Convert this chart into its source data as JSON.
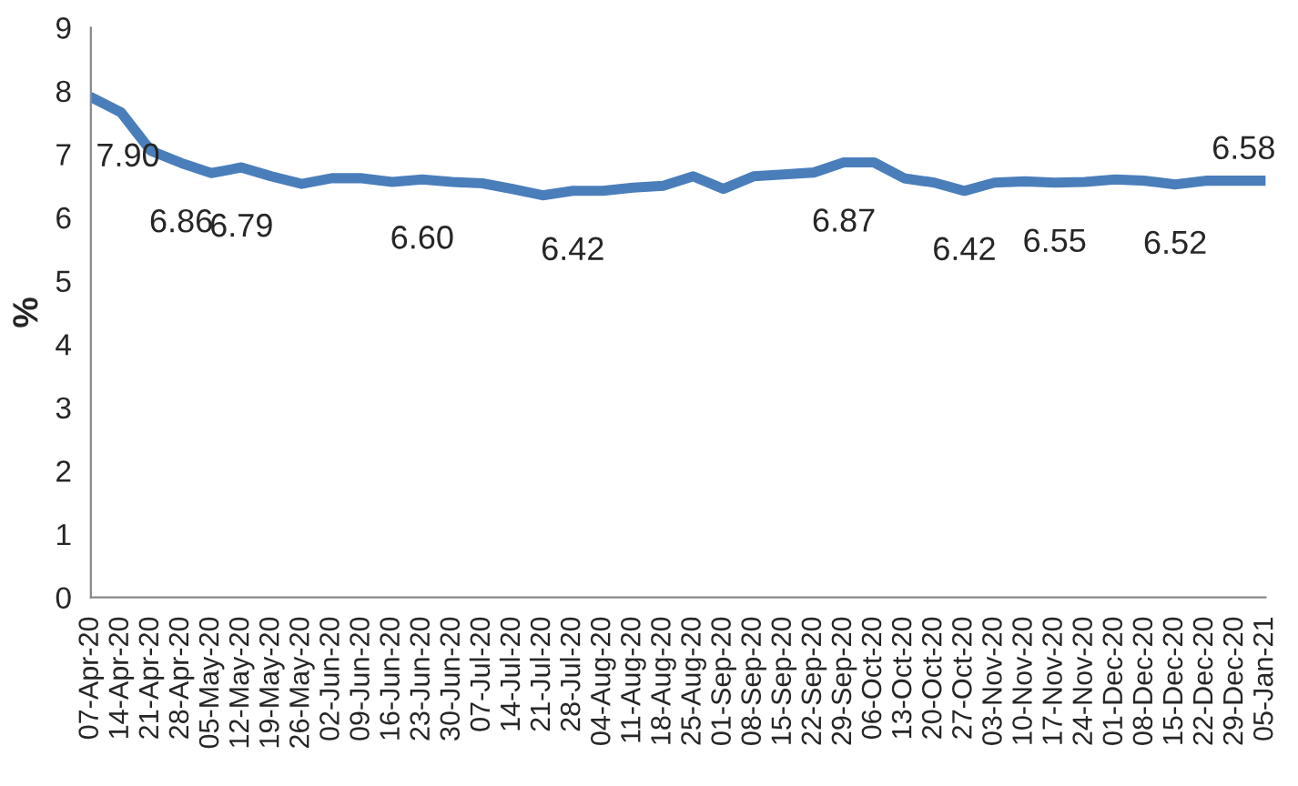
{
  "chart_data": {
    "type": "line",
    "ylabel": "%",
    "categories": [
      "07-Apr-20",
      "14-Apr-20",
      "21-Apr-20",
      "28-Apr-20",
      "05-May-20",
      "12-May-20",
      "19-May-20",
      "26-May-20",
      "02-Jun-20",
      "09-Jun-20",
      "16-Jun-20",
      "23-Jun-20",
      "30-Jun-20",
      "07-Jul-20",
      "14-Jul-20",
      "21-Jul-20",
      "28-Jul-20",
      "04-Aug-20",
      "11-Aug-20",
      "18-Aug-20",
      "25-Aug-20",
      "01-Sep-20",
      "08-Sep-20",
      "15-Sep-20",
      "22-Sep-20",
      "29-Sep-20",
      "06-Oct-20",
      "13-Oct-20",
      "20-Oct-20",
      "27-Oct-20",
      "03-Nov-20",
      "10-Nov-20",
      "17-Nov-20",
      "24-Nov-20",
      "01-Dec-20",
      "08-Dec-20",
      "15-Dec-20",
      "22-Dec-20",
      "29-Dec-20",
      "05-Jan-21"
    ],
    "series": [
      {
        "color": "#4a7ebb",
        "values": [
          7.9,
          7.66,
          7.05,
          6.86,
          6.7,
          6.79,
          6.65,
          6.53,
          6.62,
          6.62,
          6.56,
          6.6,
          6.56,
          6.54,
          6.45,
          6.35,
          6.42,
          6.42,
          6.47,
          6.5,
          6.65,
          6.45,
          6.65,
          6.68,
          6.71,
          6.87,
          6.87,
          6.62,
          6.55,
          6.42,
          6.55,
          6.57,
          6.55,
          6.56,
          6.6,
          6.58,
          6.52,
          6.58,
          6.58,
          6.58
        ],
        "value_labels": [
          "7.90",
          null,
          null,
          "6.86",
          null,
          "6.79",
          null,
          null,
          null,
          null,
          null,
          "6.60",
          null,
          null,
          null,
          null,
          "6.42",
          null,
          null,
          null,
          null,
          null,
          null,
          null,
          null,
          "6.87",
          null,
          null,
          null,
          "6.42",
          null,
          null,
          "6.55",
          null,
          null,
          null,
          "6.52",
          null,
          null,
          "6.58"
        ]
      }
    ],
    "ylim": [
      0,
      9
    ],
    "yticks": [
      0,
      1,
      2,
      3,
      4,
      5,
      6,
      7,
      8,
      9
    ],
    "grid": false,
    "marker": "none",
    "line_style": "solid",
    "legend": false
  }
}
